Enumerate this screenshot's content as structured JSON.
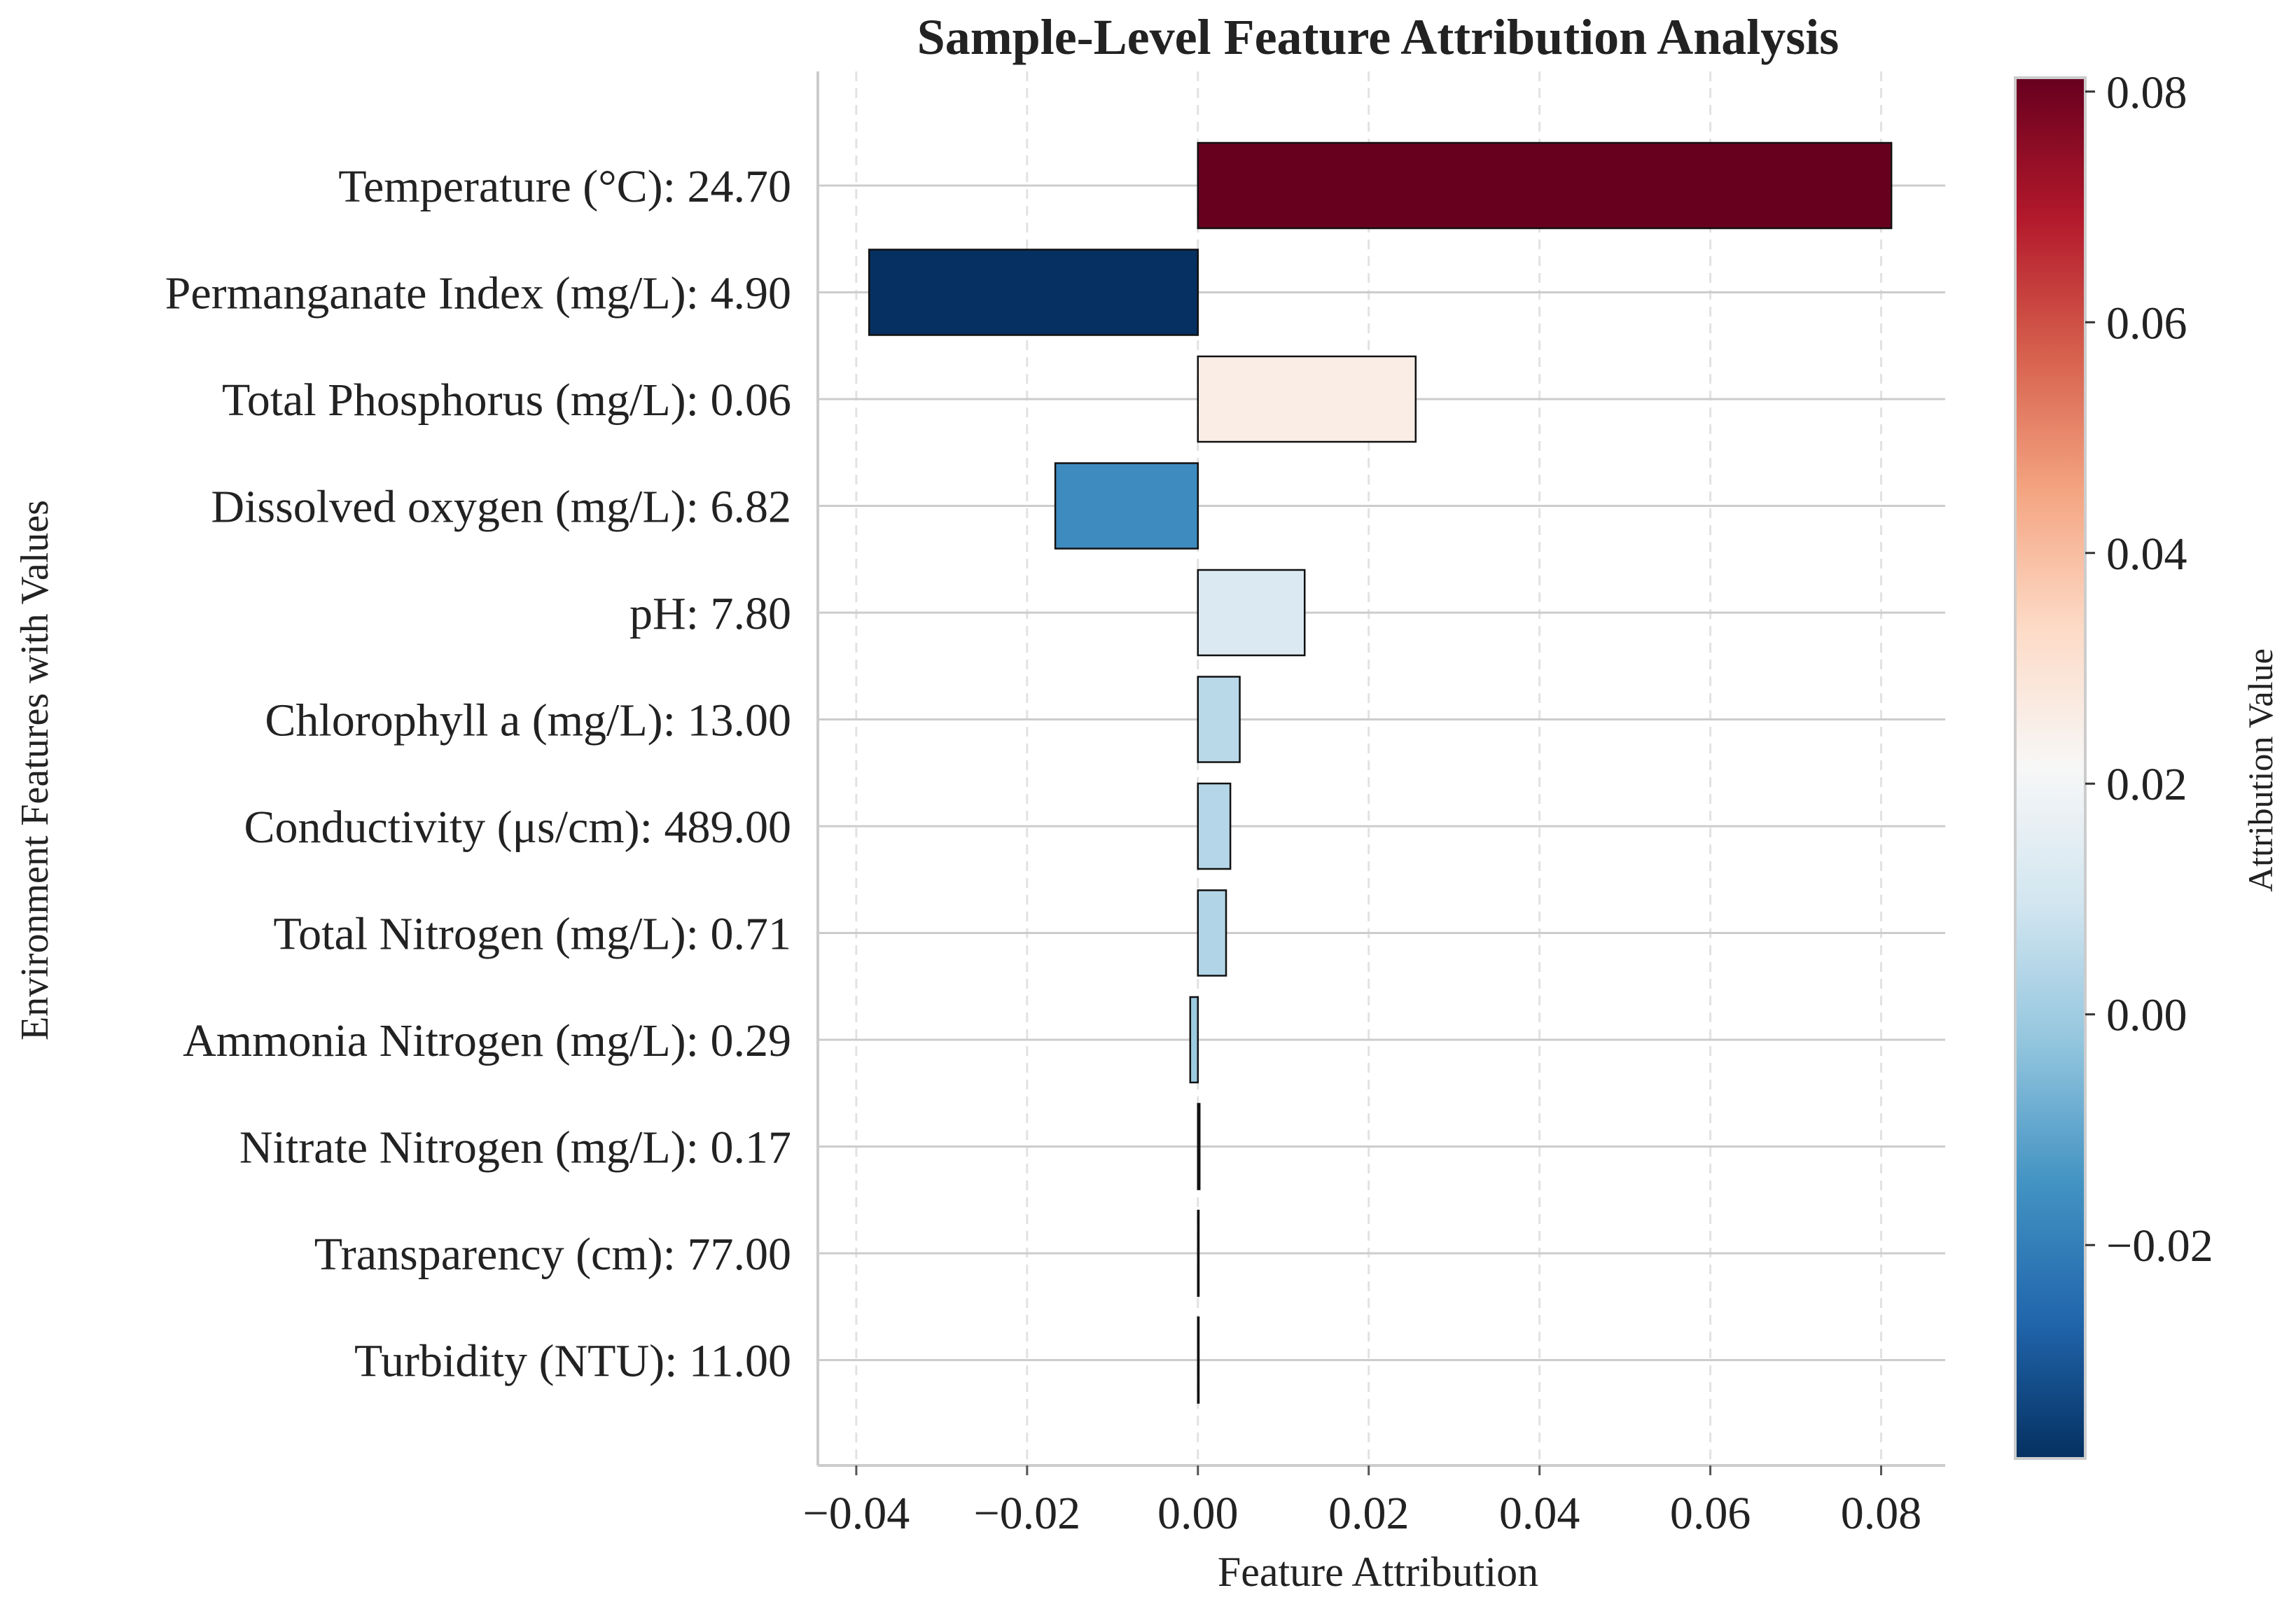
{
  "chart_data": {
    "type": "bar",
    "orientation": "horizontal",
    "title": "Sample-Level Feature Attribution Analysis",
    "xlabel": "Feature Attribution",
    "ylabel": "Environment Features with Values",
    "xlim": [
      -0.0445,
      0.0875
    ],
    "xticks": [
      "−0.04",
      "−0.02",
      "0.00",
      "0.02",
      "0.04",
      "0.06",
      "0.08"
    ],
    "xtick_values": [
      -0.04,
      -0.02,
      0.0,
      0.02,
      0.04,
      0.06,
      0.08
    ],
    "grid": true,
    "categories": [
      "Temperature (°C): 24.70",
      "Permanganate Index (mg/L): 4.90",
      "Total Phosphorus (mg/L): 0.06",
      "Dissolved oxygen (mg/L): 6.82",
      "pH: 7.80",
      "Chlorophyll a (mg/L): 13.00",
      "Conductivity (μs/cm): 489.00",
      "Total Nitrogen (mg/L): 0.71",
      "Ammonia Nitrogen (mg/L): 0.29",
      "Nitrate Nitrogen (mg/L): 0.17",
      "Transparency (cm): 77.00",
      "Turbidity (NTU): 11.00"
    ],
    "values": [
      0.0812,
      -0.0385,
      0.0255,
      -0.0167,
      0.0125,
      0.0049,
      0.0038,
      0.0033,
      -0.0009,
      0.0002,
      0.0001,
      0.0001
    ],
    "colorbar": {
      "label": "Attribution Value",
      "colormap": "RdBu_r",
      "range": [
        -0.0385,
        0.0812
      ],
      "ticks": [
        "−0.02",
        "0.00",
        "0.02",
        "0.04",
        "0.06",
        "0.08"
      ],
      "tick_values": [
        -0.02,
        0.0,
        0.02,
        0.04,
        0.06,
        0.08
      ],
      "stops": [
        "#053061",
        "#2166ac",
        "#4393c3",
        "#92c5de",
        "#d1e5f0",
        "#f7f7f7",
        "#fddbc7",
        "#f4a582",
        "#d6604d",
        "#b2182b",
        "#67001f"
      ]
    }
  }
}
